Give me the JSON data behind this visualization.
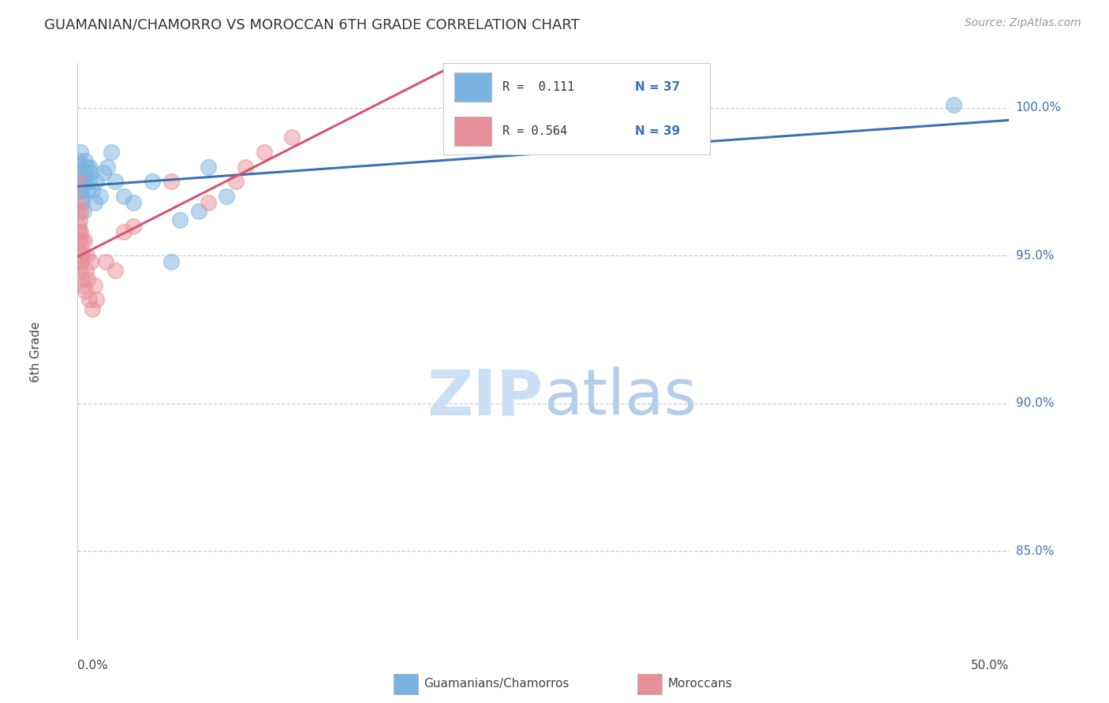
{
  "title": "GUAMANIAN/CHAMORRO VS MOROCCAN 6TH GRADE CORRELATION CHART",
  "source": "Source: ZipAtlas.com",
  "ylabel": "6th Grade",
  "xlim": [
    0.0,
    50.0
  ],
  "ylim": [
    82.0,
    101.5
  ],
  "yticks": [
    85.0,
    90.0,
    95.0,
    100.0
  ],
  "ytick_labels": [
    "85.0%",
    "90.0%",
    "95.0%",
    "100.0%"
  ],
  "legend_r1": "R =  0.111",
  "legend_n1": "N = 37",
  "legend_r2": "R = 0.564",
  "legend_n2": "N = 39",
  "blue_color": "#7ab3e0",
  "pink_color": "#e8909a",
  "blue_line_color": "#3a72b5",
  "pink_line_color": "#d9546e",
  "background": "#ffffff",
  "watermark_zip": "ZIP",
  "watermark_atlas": "atlas",
  "watermark_color_zip": "#c8dff5",
  "watermark_color_atlas": "#b0d0ee",
  "guam_x": [
    0.05,
    0.08,
    0.1,
    0.12,
    0.15,
    0.18,
    0.2,
    0.22,
    0.25,
    0.28,
    0.3,
    0.35,
    0.4,
    0.45,
    0.5,
    0.55,
    0.6,
    0.65,
    0.7,
    0.8,
    0.9,
    1.0,
    1.2,
    1.4,
    1.6,
    1.8,
    2.0,
    2.5,
    3.0,
    4.0,
    5.0,
    5.5,
    6.5,
    7.0,
    8.0,
    47.0,
    0.1
  ],
  "guam_y": [
    98.2,
    97.8,
    97.5,
    98.0,
    98.5,
    97.2,
    97.8,
    97.0,
    96.8,
    97.5,
    96.5,
    97.8,
    98.2,
    97.5,
    98.0,
    97.2,
    97.5,
    98.0,
    97.8,
    97.2,
    96.8,
    97.5,
    97.0,
    97.8,
    98.0,
    98.5,
    97.5,
    97.0,
    96.8,
    97.5,
    94.8,
    96.2,
    96.5,
    98.0,
    97.0,
    100.1,
    97.2
  ],
  "moroccan_x": [
    0.02,
    0.04,
    0.05,
    0.06,
    0.07,
    0.08,
    0.09,
    0.1,
    0.11,
    0.12,
    0.13,
    0.15,
    0.16,
    0.18,
    0.2,
    0.22,
    0.25,
    0.28,
    0.3,
    0.35,
    0.4,
    0.45,
    0.5,
    0.55,
    0.6,
    0.7,
    0.8,
    0.9,
    1.0,
    1.5,
    2.0,
    2.5,
    3.0,
    5.0,
    7.0,
    8.5,
    9.0,
    10.0,
    11.5
  ],
  "moroccan_y": [
    96.8,
    97.5,
    96.5,
    95.5,
    96.0,
    95.8,
    95.0,
    94.8,
    96.2,
    95.5,
    94.5,
    95.8,
    96.5,
    95.0,
    94.8,
    95.5,
    94.2,
    95.0,
    94.0,
    95.5,
    93.8,
    94.5,
    95.0,
    94.2,
    93.5,
    94.8,
    93.2,
    94.0,
    93.5,
    94.8,
    94.5,
    95.8,
    96.0,
    97.5,
    96.8,
    97.5,
    98.0,
    98.5,
    99.0
  ]
}
